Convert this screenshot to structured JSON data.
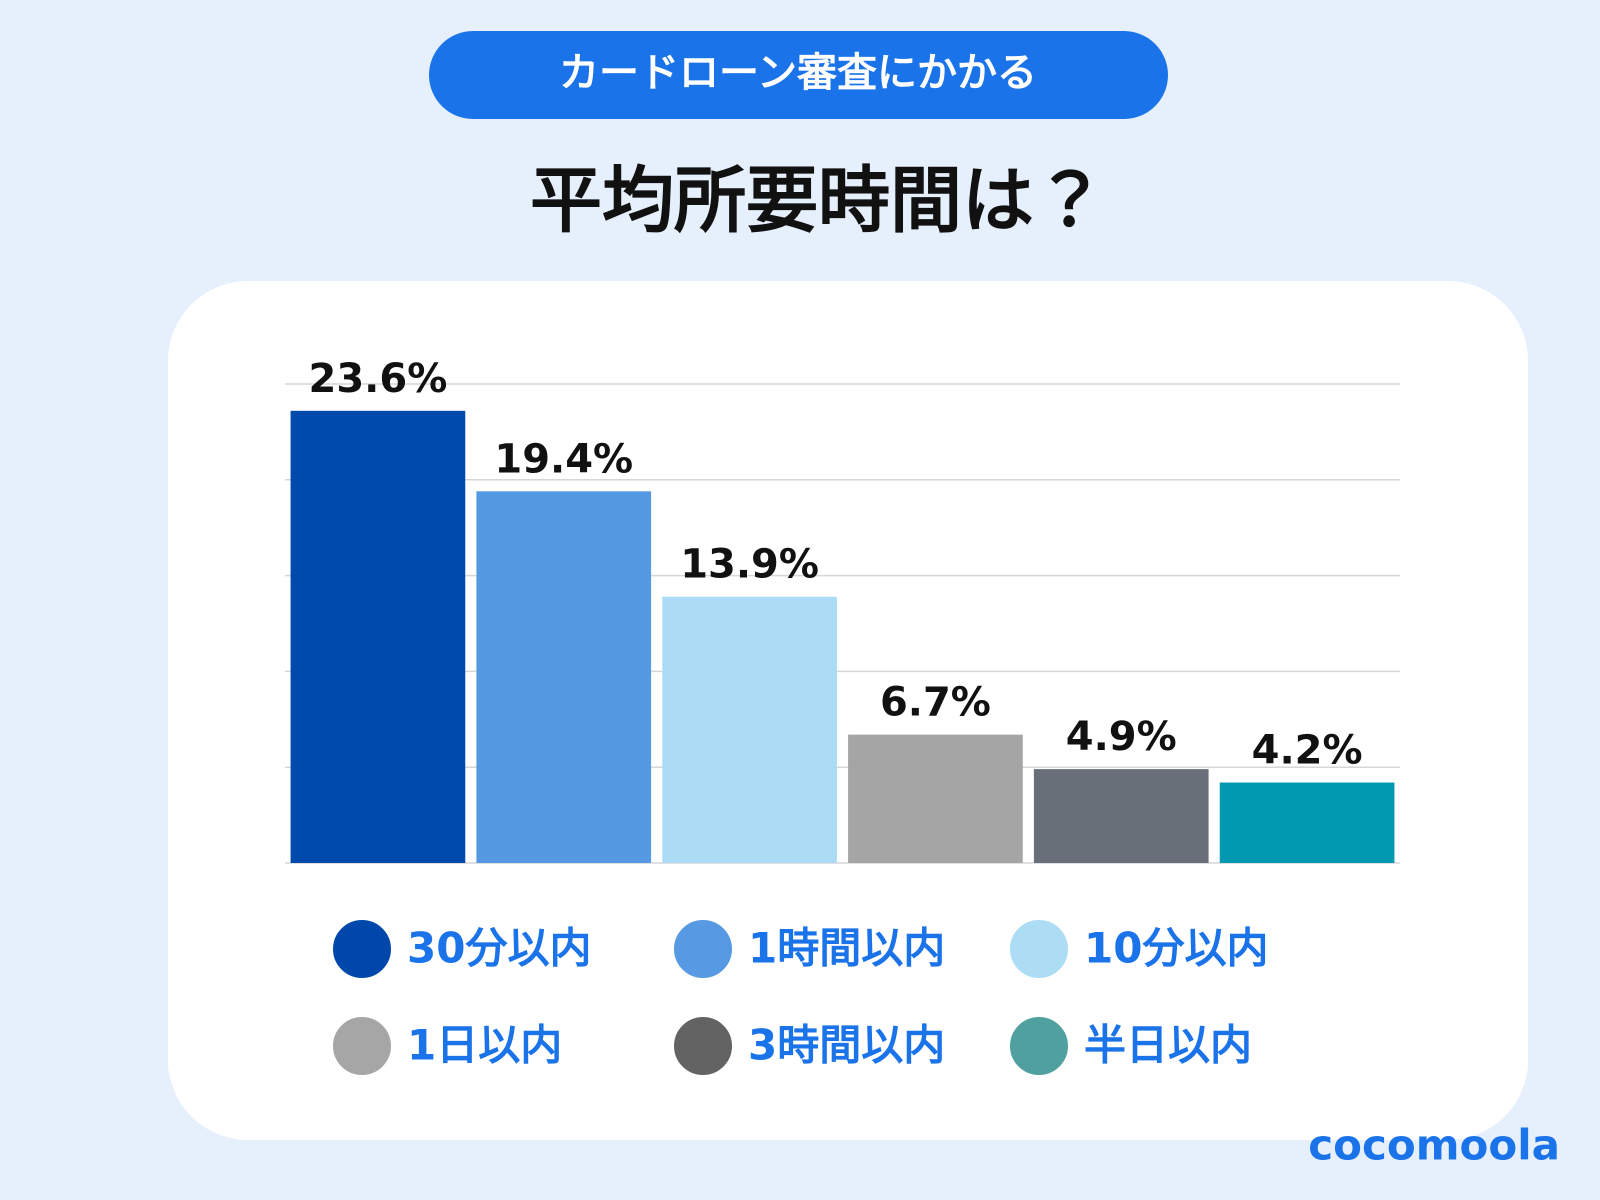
{
  "chart_data": {
    "type": "bar",
    "subtitle": "カードローン審査にかかる",
    "title": "平均所要時間は？",
    "brand": "cocomoola",
    "categories": [
      "30分以内",
      "1時間以内",
      "10分以内",
      "1日以内",
      "3時間以内",
      "半日以内"
    ],
    "values": [
      23.6,
      19.4,
      13.9,
      6.7,
      4.9,
      4.2
    ],
    "value_labels": [
      "23.6%",
      "19.4%",
      "13.9%",
      "6.7%",
      "4.9%",
      "4.2%"
    ],
    "colors": [
      "#004aad",
      "#5699e3",
      "#acdbf5",
      "#a5a5a5",
      "#686f79",
      "#0099b0"
    ],
    "legend_colors": [
      "#0047ab",
      "#5799e3",
      "#addcf5",
      "#a6a6a6",
      "#636363",
      "#50a0a0"
    ],
    "ylim": [
      0,
      25
    ],
    "yticks": [
      0,
      5,
      10,
      15,
      20,
      25
    ],
    "grid": true
  }
}
